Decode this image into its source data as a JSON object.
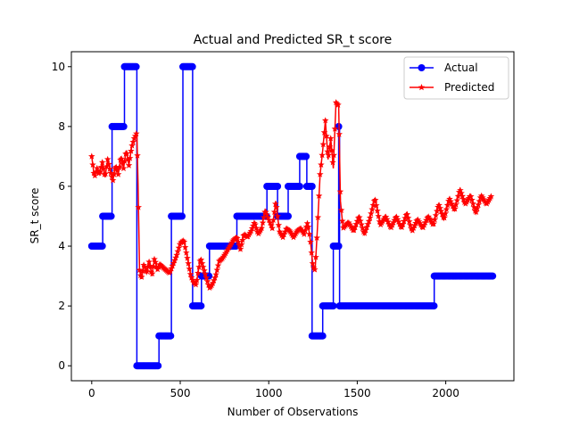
{
  "chart_data": {
    "type": "line",
    "title": "Actual and Predicted SR_t score",
    "xlabel": "Number of Observations",
    "ylabel": "SR_t score",
    "xlim": [
      -115,
      2385
    ],
    "ylim": [
      -0.5,
      10.5
    ],
    "xticks": [
      0,
      500,
      1000,
      1500,
      2000
    ],
    "yticks": [
      0,
      2,
      4,
      6,
      8,
      10
    ],
    "grid": false,
    "legend_position": "top-right",
    "legend_entries": [
      "Actual",
      "Predicted"
    ],
    "series": [
      {
        "name": "Actual",
        "color": "#0000ff",
        "marker": "circle",
        "segments": [
          [
            0,
            62,
            4
          ],
          [
            62,
            115,
            5
          ],
          [
            115,
            185,
            8
          ],
          [
            185,
            255,
            10
          ],
          [
            255,
            380,
            0
          ],
          [
            380,
            450,
            1
          ],
          [
            450,
            515,
            5
          ],
          [
            515,
            570,
            10
          ],
          [
            570,
            620,
            2
          ],
          [
            620,
            665,
            3
          ],
          [
            665,
            820,
            4
          ],
          [
            820,
            990,
            5
          ],
          [
            990,
            1050,
            6
          ],
          [
            1050,
            1110,
            5
          ],
          [
            1110,
            1145,
            6
          ],
          [
            1145,
            1175,
            6
          ],
          [
            1175,
            1215,
            7
          ],
          [
            1215,
            1245,
            6
          ],
          [
            1245,
            1305,
            1
          ],
          [
            1305,
            1365,
            2
          ],
          [
            1365,
            1395,
            4
          ],
          [
            1395,
            1400,
            8
          ],
          [
            1400,
            1935,
            2
          ],
          [
            1935,
            2270,
            3
          ]
        ]
      },
      {
        "name": "Predicted",
        "color": "#ff0000",
        "marker": "star",
        "anchors": [
          [
            0,
            7.0
          ],
          [
            15,
            6.3
          ],
          [
            30,
            6.6
          ],
          [
            45,
            6.4
          ],
          [
            60,
            6.8
          ],
          [
            75,
            6.3
          ],
          [
            90,
            6.9
          ],
          [
            105,
            6.5
          ],
          [
            120,
            6.2
          ],
          [
            135,
            6.7
          ],
          [
            150,
            6.4
          ],
          [
            165,
            7.0
          ],
          [
            180,
            6.6
          ],
          [
            195,
            7.2
          ],
          [
            210,
            6.7
          ],
          [
            225,
            7.3
          ],
          [
            240,
            7.6
          ],
          [
            255,
            7.8
          ],
          [
            262,
            6.0
          ],
          [
            270,
            3.2
          ],
          [
            280,
            2.9
          ],
          [
            295,
            3.4
          ],
          [
            310,
            3.1
          ],
          [
            325,
            3.5
          ],
          [
            340,
            3.0
          ],
          [
            355,
            3.6
          ],
          [
            370,
            3.2
          ],
          [
            385,
            3.4
          ],
          [
            400,
            3.3
          ],
          [
            420,
            3.2
          ],
          [
            440,
            3.1
          ],
          [
            460,
            3.4
          ],
          [
            480,
            3.7
          ],
          [
            500,
            4.1
          ],
          [
            520,
            4.2
          ],
          [
            540,
            3.6
          ],
          [
            560,
            3.0
          ],
          [
            575,
            2.8
          ],
          [
            590,
            2.7
          ],
          [
            600,
            3.1
          ],
          [
            615,
            3.6
          ],
          [
            630,
            3.3
          ],
          [
            650,
            2.9
          ],
          [
            665,
            2.6
          ],
          [
            680,
            2.7
          ],
          [
            700,
            3.0
          ],
          [
            720,
            3.5
          ],
          [
            740,
            3.6
          ],
          [
            760,
            3.8
          ],
          [
            780,
            4.0
          ],
          [
            800,
            4.2
          ],
          [
            820,
            4.3
          ],
          [
            840,
            3.9
          ],
          [
            860,
            4.4
          ],
          [
            880,
            4.3
          ],
          [
            900,
            4.5
          ],
          [
            920,
            4.8
          ],
          [
            940,
            4.4
          ],
          [
            960,
            4.6
          ],
          [
            980,
            5.2
          ],
          [
            1000,
            4.9
          ],
          [
            1020,
            4.6
          ],
          [
            1040,
            5.5
          ],
          [
            1060,
            4.5
          ],
          [
            1080,
            4.3
          ],
          [
            1100,
            4.6
          ],
          [
            1120,
            4.5
          ],
          [
            1140,
            4.3
          ],
          [
            1160,
            4.5
          ],
          [
            1180,
            4.6
          ],
          [
            1200,
            4.4
          ],
          [
            1220,
            4.8
          ],
          [
            1235,
            4.2
          ],
          [
            1250,
            3.3
          ],
          [
            1262,
            3.2
          ],
          [
            1275,
            4.6
          ],
          [
            1290,
            6.4
          ],
          [
            1305,
            7.2
          ],
          [
            1320,
            8.2
          ],
          [
            1335,
            6.9
          ],
          [
            1350,
            7.6
          ],
          [
            1365,
            6.6
          ],
          [
            1380,
            8.8
          ],
          [
            1395,
            8.7
          ],
          [
            1405,
            5.5
          ],
          [
            1420,
            4.6
          ],
          [
            1450,
            4.8
          ],
          [
            1480,
            4.5
          ],
          [
            1510,
            5.0
          ],
          [
            1540,
            4.4
          ],
          [
            1570,
            4.9
          ],
          [
            1600,
            5.6
          ],
          [
            1630,
            4.7
          ],
          [
            1660,
            5.0
          ],
          [
            1690,
            4.6
          ],
          [
            1720,
            5.0
          ],
          [
            1750,
            4.6
          ],
          [
            1780,
            5.1
          ],
          [
            1810,
            4.5
          ],
          [
            1840,
            4.9
          ],
          [
            1870,
            4.6
          ],
          [
            1900,
            5.0
          ],
          [
            1930,
            4.7
          ],
          [
            1960,
            5.4
          ],
          [
            1990,
            4.9
          ],
          [
            2020,
            5.6
          ],
          [
            2050,
            5.2
          ],
          [
            2080,
            5.9
          ],
          [
            2110,
            5.4
          ],
          [
            2140,
            5.7
          ],
          [
            2170,
            5.1
          ],
          [
            2200,
            5.7
          ],
          [
            2230,
            5.4
          ],
          [
            2260,
            5.7
          ]
        ]
      }
    ]
  }
}
